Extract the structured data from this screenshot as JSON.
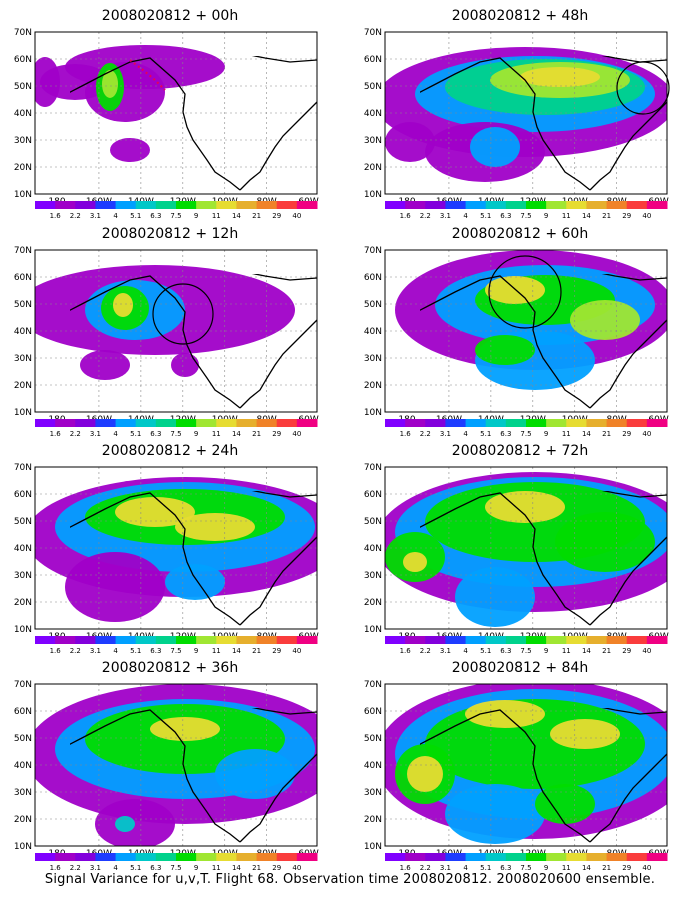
{
  "panels": [
    {
      "title": "2008020812 + 00h"
    },
    {
      "title": "2008020812 + 48h"
    },
    {
      "title": "2008020812 + 12h"
    },
    {
      "title": "2008020812 + 60h"
    },
    {
      "title": "2008020812 + 24h"
    },
    {
      "title": "2008020812 + 72h"
    },
    {
      "title": "2008020812 + 36h"
    },
    {
      "title": "2008020812 + 84h"
    }
  ],
  "axes": {
    "y_ticks": [
      "70N",
      "60N",
      "50N",
      "40N",
      "30N",
      "20N",
      "10N"
    ],
    "x_ticks": [
      "180",
      "160W",
      "140W",
      "120W",
      "100W",
      "80W",
      "60W"
    ]
  },
  "colorbar": {
    "labels": [
      "1.6",
      "2.2",
      "3.1",
      "4",
      "5.1",
      "6.3",
      "7.5",
      "9",
      "11",
      "14",
      "21",
      "29",
      "40"
    ],
    "colors": [
      "#a000c8",
      "#8200dc",
      "#1e3cff",
      "#00a0ff",
      "#00c8c8",
      "#00d28c",
      "#00dc00",
      "#a0e632",
      "#e6dc32",
      "#e6af2d",
      "#f08228",
      "#fa3c3c",
      "#f00082"
    ]
  },
  "footer": "Signal Variance for u,v,T. Flight 68. Observation time 2008020812. 2008020600 ensemble."
}
